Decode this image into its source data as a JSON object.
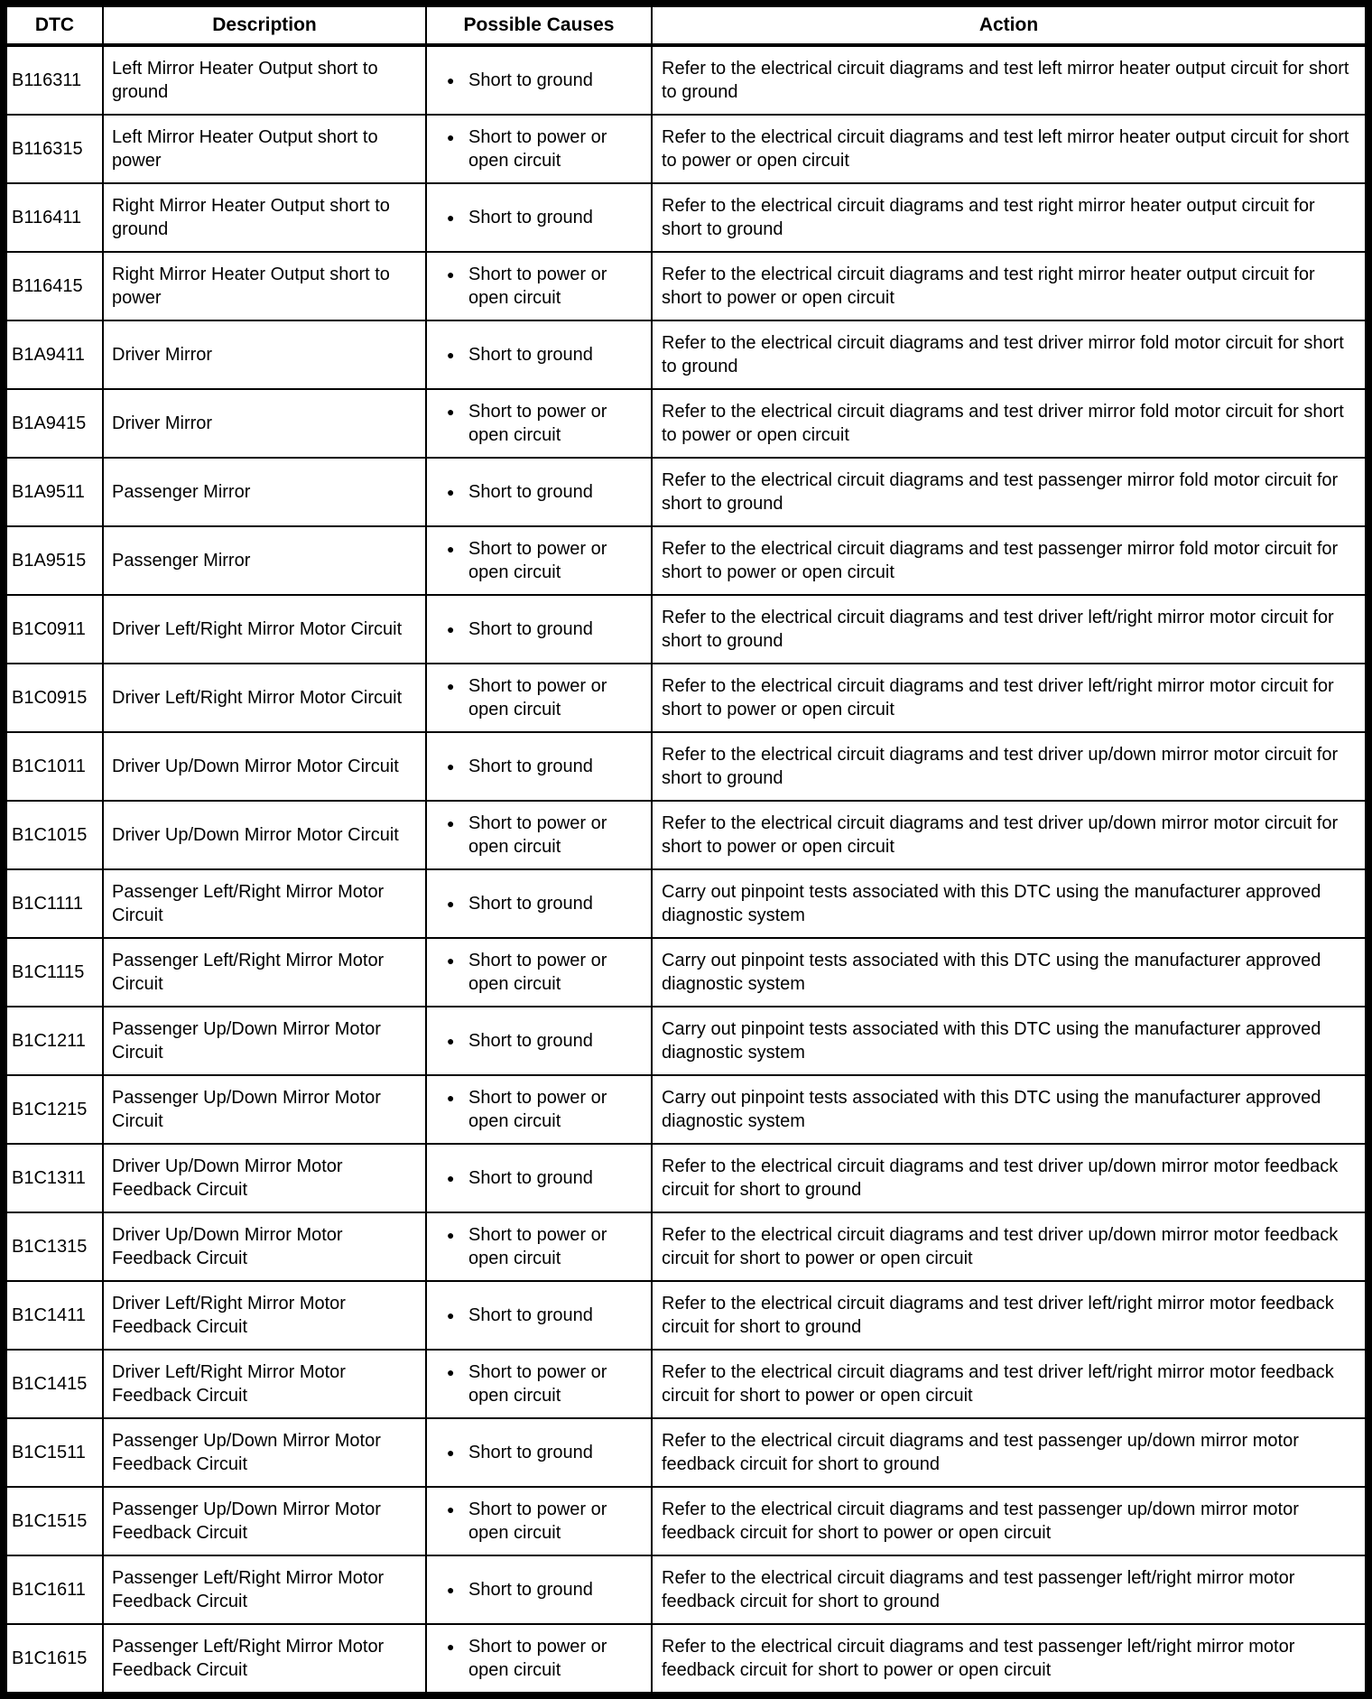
{
  "table": {
    "headers": [
      "DTC",
      "Description",
      "Possible Causes",
      "Action"
    ],
    "bullet_icon": "●",
    "colors": {
      "border": "#000000",
      "background": "#ffffff",
      "text": "#000000"
    },
    "rows": [
      {
        "dtc": "B116311",
        "description": "Left Mirror Heater Output short to ground",
        "cause": "Short to ground",
        "action": "Refer to the electrical circuit diagrams and test left mirror heater output circuit for short to ground"
      },
      {
        "dtc": "B116315",
        "description": "Left Mirror Heater Output short to power",
        "cause": "Short to power or open circuit",
        "action": "Refer to the electrical circuit diagrams and test left mirror heater output circuit for short to power or open circuit"
      },
      {
        "dtc": "B116411",
        "description": "Right Mirror Heater Output short to ground",
        "cause": "Short to ground",
        "action": "Refer to the electrical circuit diagrams and test right mirror heater output circuit for short to ground"
      },
      {
        "dtc": "B116415",
        "description": "Right Mirror Heater Output short to power",
        "cause": "Short to power or open circuit",
        "action": "Refer to the electrical circuit diagrams and test right mirror heater output circuit for short to power or open circuit"
      },
      {
        "dtc": "B1A9411",
        "description": "Driver Mirror",
        "cause": "Short to ground",
        "action": "Refer to the electrical circuit diagrams and test driver mirror fold motor circuit for short to ground"
      },
      {
        "dtc": "B1A9415",
        "description": "Driver Mirror",
        "cause": "Short to power or open circuit",
        "action": "Refer to the electrical circuit diagrams and test driver mirror fold motor circuit for short to power or open circuit"
      },
      {
        "dtc": "B1A9511",
        "description": "Passenger Mirror",
        "cause": "Short to ground",
        "action": "Refer to the electrical circuit diagrams and test passenger mirror fold motor circuit for short to ground"
      },
      {
        "dtc": "B1A9515",
        "description": "Passenger Mirror",
        "cause": "Short to power or open circuit",
        "action": "Refer to the electrical circuit diagrams and test passenger mirror fold motor circuit for short to power or open circuit"
      },
      {
        "dtc": "B1C0911",
        "description": "Driver Left/Right Mirror Motor Circuit",
        "cause": "Short to ground",
        "action": "Refer to the electrical circuit diagrams and test driver left/right mirror motor circuit for short to ground"
      },
      {
        "dtc": "B1C0915",
        "description": "Driver Left/Right Mirror Motor Circuit",
        "cause": "Short to power or open circuit",
        "action": "Refer to the electrical circuit diagrams and test driver left/right mirror motor circuit for short to power or open circuit"
      },
      {
        "dtc": "B1C1011",
        "description": "Driver Up/Down Mirror Motor Circuit",
        "cause": "Short to ground",
        "action": "Refer to the electrical circuit diagrams and test driver up/down mirror motor circuit for short to ground"
      },
      {
        "dtc": "B1C1015",
        "description": "Driver Up/Down Mirror Motor Circuit",
        "cause": "Short to power or open circuit",
        "action": "Refer to the electrical circuit diagrams and test driver up/down mirror motor circuit for short to power or open circuit"
      },
      {
        "dtc": "B1C1111",
        "description": "Passenger Left/Right Mirror Motor Circuit",
        "cause": "Short to ground",
        "action": "Carry out pinpoint tests associated with this DTC using the manufacturer approved diagnostic system"
      },
      {
        "dtc": "B1C1115",
        "description": "Passenger Left/Right Mirror Motor Circuit",
        "cause": "Short to power or open circuit",
        "action": "Carry out pinpoint tests associated with this DTC using the manufacturer approved diagnostic system"
      },
      {
        "dtc": "B1C1211",
        "description": "Passenger Up/Down Mirror Motor Circuit",
        "cause": "Short to ground",
        "action": "Carry out pinpoint tests associated with this DTC using the manufacturer approved diagnostic system"
      },
      {
        "dtc": "B1C1215",
        "description": "Passenger Up/Down Mirror Motor Circuit",
        "cause": "Short to power or open circuit",
        "action": "Carry out pinpoint tests associated with this DTC using the manufacturer approved diagnostic system"
      },
      {
        "dtc": "B1C1311",
        "description": "Driver Up/Down Mirror Motor Feedback Circuit",
        "cause": "Short to ground",
        "action": "Refer to the electrical circuit diagrams and test driver up/down mirror motor feedback circuit for short to ground"
      },
      {
        "dtc": "B1C1315",
        "description": "Driver Up/Down Mirror Motor Feedback Circuit",
        "cause": "Short to power or open circuit",
        "action": "Refer to the electrical circuit diagrams and test driver up/down mirror motor feedback circuit for short to power or open circuit"
      },
      {
        "dtc": "B1C1411",
        "description": "Driver Left/Right Mirror Motor Feedback Circuit",
        "cause": "Short to ground",
        "action": "Refer to the electrical circuit diagrams and test driver left/right mirror motor feedback circuit for short to ground"
      },
      {
        "dtc": "B1C1415",
        "description": "Driver Left/Right Mirror Motor Feedback Circuit",
        "cause": "Short to power or open circuit",
        "action": "Refer to the electrical circuit diagrams and test driver left/right mirror motor feedback circuit for short to power or open circuit"
      },
      {
        "dtc": "B1C1511",
        "description": "Passenger Up/Down Mirror Motor Feedback Circuit",
        "cause": "Short to ground",
        "action": "Refer to the electrical circuit diagrams and test passenger up/down mirror motor feedback circuit for short to ground"
      },
      {
        "dtc": "B1C1515",
        "description": "Passenger Up/Down Mirror Motor Feedback Circuit",
        "cause": "Short to power or open circuit",
        "action": "Refer to the electrical circuit diagrams and test passenger up/down mirror motor feedback circuit for short to power or open circuit"
      },
      {
        "dtc": "B1C1611",
        "description": "Passenger Left/Right Mirror Motor Feedback Circuit",
        "cause": "Short to ground",
        "action": "Refer to the electrical circuit diagrams and test passenger left/right mirror motor feedback circuit for short to ground"
      },
      {
        "dtc": "B1C1615",
        "description": "Passenger Left/Right Mirror Motor Feedback Circuit",
        "cause": "Short to power or open circuit",
        "action": "Refer to the electrical circuit diagrams and test passenger left/right mirror motor feedback circuit for short to power or open circuit"
      }
    ]
  }
}
